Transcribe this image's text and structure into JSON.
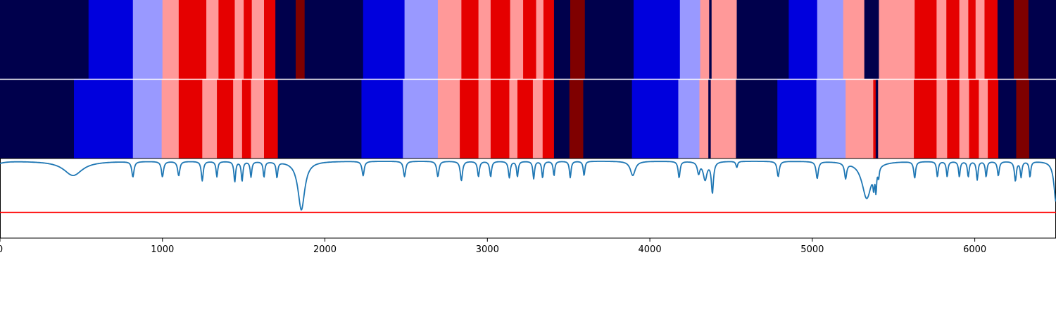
{
  "chart_data": [
    {
      "type": "heatmap",
      "xlim": [
        0,
        6500
      ],
      "color_map": {
        "0": "#00004c",
        "1": "#0000dd",
        "2": "#9999ff",
        "3": "#ff9999",
        "4": "#e50000",
        "5": "#7f0000"
      },
      "segments": [
        [
          0,
          545,
          0
        ],
        [
          545,
          818,
          1
        ],
        [
          818,
          1000,
          2
        ],
        [
          1000,
          1100,
          3
        ],
        [
          1100,
          1270,
          4
        ],
        [
          1270,
          1345,
          3
        ],
        [
          1345,
          1445,
          4
        ],
        [
          1445,
          1500,
          3
        ],
        [
          1500,
          1550,
          4
        ],
        [
          1550,
          1625,
          3
        ],
        [
          1625,
          1695,
          4
        ],
        [
          1695,
          1820,
          0
        ],
        [
          1820,
          1875,
          5
        ],
        [
          1875,
          2235,
          0
        ],
        [
          2235,
          2490,
          1
        ],
        [
          2490,
          2695,
          2
        ],
        [
          2695,
          2840,
          3
        ],
        [
          2840,
          2945,
          4
        ],
        [
          2945,
          3020,
          3
        ],
        [
          3020,
          3140,
          4
        ],
        [
          3140,
          3220,
          3
        ],
        [
          3220,
          3300,
          4
        ],
        [
          3300,
          3345,
          3
        ],
        [
          3345,
          3410,
          4
        ],
        [
          3410,
          3510,
          0
        ],
        [
          3510,
          3600,
          5
        ],
        [
          3600,
          3900,
          0
        ],
        [
          3900,
          4185,
          1
        ],
        [
          4185,
          4310,
          2
        ],
        [
          4310,
          4365,
          3
        ],
        [
          4365,
          4380,
          0
        ],
        [
          4380,
          4535,
          3
        ],
        [
          4535,
          4855,
          0
        ],
        [
          4855,
          5030,
          1
        ],
        [
          5030,
          5190,
          2
        ],
        [
          5190,
          5320,
          3
        ],
        [
          5320,
          5410,
          0
        ],
        [
          5410,
          5630,
          3
        ],
        [
          5630,
          5765,
          4
        ],
        [
          5765,
          5825,
          3
        ],
        [
          5825,
          5905,
          4
        ],
        [
          5905,
          5960,
          3
        ],
        [
          5960,
          6005,
          4
        ],
        [
          6005,
          6060,
          3
        ],
        [
          6060,
          6140,
          4
        ],
        [
          6140,
          6240,
          0
        ],
        [
          6240,
          6330,
          5
        ],
        [
          6330,
          6500,
          0
        ]
      ]
    },
    {
      "type": "heatmap",
      "xlim": [
        0,
        6500
      ],
      "color_map": {
        "0": "#00004c",
        "1": "#0000dd",
        "2": "#9999ff",
        "3": "#ff9999",
        "4": "#e50000",
        "5": "#7f0000"
      },
      "segments": [
        [
          0,
          455,
          0
        ],
        [
          455,
          818,
          1
        ],
        [
          818,
          995,
          2
        ],
        [
          995,
          1100,
          3
        ],
        [
          1100,
          1245,
          4
        ],
        [
          1245,
          1335,
          3
        ],
        [
          1335,
          1435,
          4
        ],
        [
          1435,
          1490,
          3
        ],
        [
          1490,
          1545,
          4
        ],
        [
          1545,
          1625,
          3
        ],
        [
          1625,
          1710,
          4
        ],
        [
          1710,
          2225,
          0
        ],
        [
          2225,
          2480,
          1
        ],
        [
          2480,
          2695,
          2
        ],
        [
          2695,
          2830,
          3
        ],
        [
          2830,
          2945,
          4
        ],
        [
          2945,
          3020,
          3
        ],
        [
          3020,
          3135,
          4
        ],
        [
          3135,
          3185,
          3
        ],
        [
          3185,
          3280,
          4
        ],
        [
          3280,
          3340,
          3
        ],
        [
          3340,
          3410,
          4
        ],
        [
          3410,
          3505,
          0
        ],
        [
          3505,
          3590,
          5
        ],
        [
          3590,
          3890,
          0
        ],
        [
          3890,
          4175,
          1
        ],
        [
          4175,
          4305,
          2
        ],
        [
          4305,
          4360,
          3
        ],
        [
          4360,
          4375,
          0
        ],
        [
          4375,
          4530,
          3
        ],
        [
          4530,
          4785,
          0
        ],
        [
          4785,
          5025,
          1
        ],
        [
          5025,
          5205,
          2
        ],
        [
          5205,
          5375,
          3
        ],
        [
          5375,
          5390,
          4
        ],
        [
          5390,
          5405,
          0
        ],
        [
          5405,
          5625,
          3
        ],
        [
          5625,
          5765,
          4
        ],
        [
          5765,
          5830,
          3
        ],
        [
          5830,
          5905,
          4
        ],
        [
          5905,
          5965,
          3
        ],
        [
          5965,
          6025,
          4
        ],
        [
          6025,
          6080,
          3
        ],
        [
          6080,
          6145,
          4
        ],
        [
          6145,
          6255,
          0
        ],
        [
          6255,
          6335,
          5
        ],
        [
          6335,
          6500,
          0
        ]
      ]
    },
    {
      "type": "line",
      "xlim": [
        0,
        6500
      ],
      "ylim": [
        -0.5,
        1.05
      ],
      "line_color": "#1f77b4",
      "threshold": {
        "value": 0.0,
        "color": "#ff0000"
      },
      "baseline": 1.0,
      "dips": [
        [
          450,
          0.72,
          70
        ],
        [
          818,
          0.7,
          8
        ],
        [
          1000,
          0.7,
          8
        ],
        [
          1100,
          0.72,
          8
        ],
        [
          1245,
          0.62,
          7
        ],
        [
          1335,
          0.7,
          6
        ],
        [
          1445,
          0.6,
          6
        ],
        [
          1490,
          0.62,
          6
        ],
        [
          1545,
          0.7,
          6
        ],
        [
          1625,
          0.7,
          6
        ],
        [
          1705,
          0.7,
          6
        ],
        [
          1855,
          0.05,
          25
        ],
        [
          2235,
          0.72,
          8
        ],
        [
          2490,
          0.7,
          8
        ],
        [
          2695,
          0.7,
          8
        ],
        [
          2840,
          0.62,
          8
        ],
        [
          2945,
          0.7,
          7
        ],
        [
          3020,
          0.7,
          7
        ],
        [
          3135,
          0.68,
          7
        ],
        [
          3185,
          0.7,
          6
        ],
        [
          3285,
          0.66,
          6
        ],
        [
          3340,
          0.68,
          6
        ],
        [
          3410,
          0.72,
          6
        ],
        [
          3510,
          0.68,
          6
        ],
        [
          3595,
          0.72,
          6
        ],
        [
          3895,
          0.72,
          18
        ],
        [
          4180,
          0.68,
          7
        ],
        [
          4300,
          0.78,
          9
        ],
        [
          4340,
          0.65,
          14
        ],
        [
          4360,
          1.0,
          7
        ],
        [
          4385,
          0.4,
          8
        ],
        [
          4535,
          0.88,
          6
        ],
        [
          4790,
          0.7,
          8
        ],
        [
          5030,
          0.67,
          8
        ],
        [
          5205,
          0.7,
          8
        ],
        [
          5335,
          0.28,
          35
        ],
        [
          5378,
          0.7,
          5
        ],
        [
          5392,
          0.58,
          4
        ],
        [
          5408,
          0.8,
          5
        ],
        [
          5630,
          0.68,
          7
        ],
        [
          5770,
          0.7,
          6
        ],
        [
          5830,
          0.7,
          6
        ],
        [
          5905,
          0.7,
          6
        ],
        [
          5960,
          0.7,
          6
        ],
        [
          6015,
          0.64,
          6
        ],
        [
          6070,
          0.7,
          6
        ],
        [
          6145,
          0.72,
          7
        ],
        [
          6250,
          0.62,
          7
        ],
        [
          6285,
          0.7,
          6
        ],
        [
          6340,
          0.7,
          6
        ],
        [
          6500,
          0.2,
          15
        ]
      ],
      "xticks": [
        0,
        1000,
        2000,
        3000,
        4000,
        5000,
        6000
      ],
      "xtick_labels": [
        "0",
        "1000",
        "2000",
        "3000",
        "4000",
        "5000",
        "6000"
      ]
    }
  ]
}
